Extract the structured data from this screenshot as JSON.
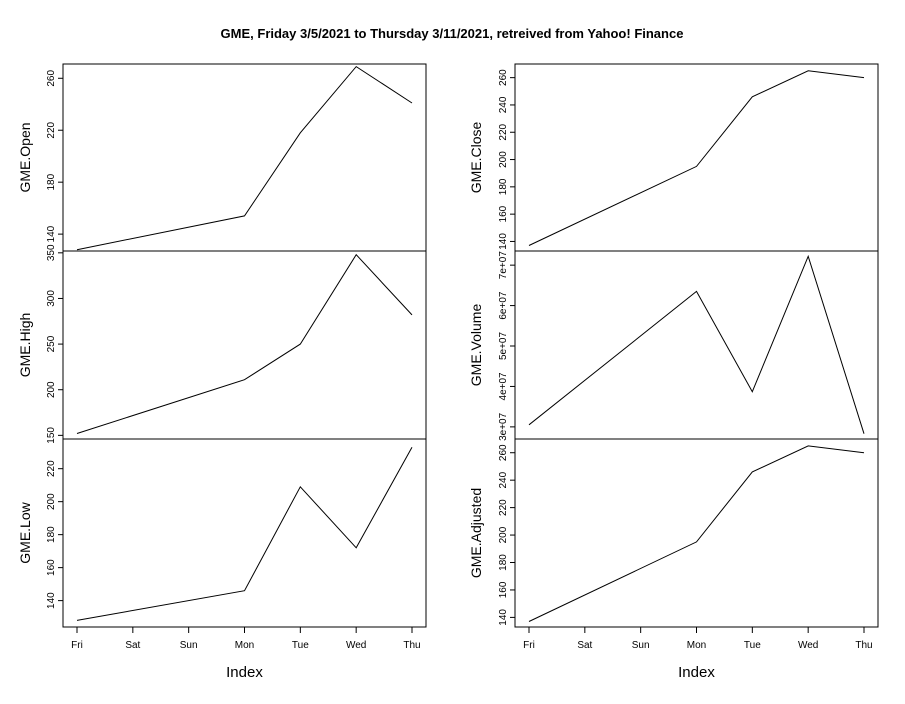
{
  "title": "GME, Friday 3/5/2021 to Thursday 3/11/2021, retreived from Yahoo! Finance",
  "chart_data": {
    "type": "line",
    "title": "GME, Friday 3/5/2021 to Thursday 3/11/2021, retreived from Yahoo! Finance",
    "x": [
      "Fri",
      "Sat",
      "Sun",
      "Mon",
      "Tue",
      "Wed",
      "Thu"
    ],
    "xlabel": "Index",
    "grid": false,
    "legend": "none",
    "columns": [
      {
        "panels": [
          {
            "ylabel": "GME.Open",
            "ylim": [
              127,
              271
            ],
            "yticks": [
              140,
              180,
              220,
              260
            ],
            "yticklabels": [
              "140",
              "180",
              "220",
              "260"
            ],
            "points": [
              [
                1,
                128
              ],
              [
                4,
                154
              ],
              [
                5,
                218
              ],
              [
                6,
                269
              ],
              [
                7,
                241
              ]
            ]
          },
          {
            "ylabel": "GME.High",
            "ylim": [
              146,
              352
            ],
            "yticks": [
              150,
              200,
              250,
              300,
              350
            ],
            "yticklabels": [
              "150",
              "200",
              "250",
              "300",
              "350"
            ],
            "points": [
              [
                1,
                152
              ],
              [
                4,
                211
              ],
              [
                5,
                250
              ],
              [
                6,
                348
              ],
              [
                7,
                282
              ]
            ]
          },
          {
            "ylabel": "GME.Low",
            "ylim": [
              124,
              238
            ],
            "yticks": [
              140,
              160,
              180,
              200,
              220
            ],
            "yticklabels": [
              "140",
              "160",
              "180",
              "200",
              "220"
            ],
            "points": [
              [
                1,
                128
              ],
              [
                4,
                146
              ],
              [
                5,
                209
              ],
              [
                6,
                172
              ],
              [
                7,
                233
              ]
            ]
          }
        ]
      },
      {
        "panels": [
          {
            "ylabel": "GME.Close",
            "ylim": [
              133,
              270
            ],
            "yticks": [
              140,
              160,
              180,
              200,
              220,
              240,
              260
            ],
            "yticklabels": [
              "140",
              "160",
              "180",
              "200",
              "220",
              "240",
              "260"
            ],
            "points": [
              [
                1,
                137
              ],
              [
                4,
                195
              ],
              [
                5,
                246
              ],
              [
                6,
                265
              ],
              [
                7,
                260
              ]
            ]
          },
          {
            "ylabel": "GME.Volume",
            "ylim": [
              27000000,
              73500000
            ],
            "yticks": [
              30000000,
              40000000,
              50000000,
              60000000,
              70000000
            ],
            "yticklabels": [
              "3e+07",
              "4e+07",
              "5e+07",
              "6e+07",
              "7e+07"
            ],
            "points": [
              [
                1,
                30500000
              ],
              [
                4,
                63500000
              ],
              [
                5,
                38700000
              ],
              [
                6,
                72200000
              ],
              [
                7,
                28300000
              ]
            ]
          },
          {
            "ylabel": "GME.Adjusted",
            "ylim": [
              133,
              270
            ],
            "yticks": [
              140,
              160,
              180,
              200,
              220,
              240,
              260
            ],
            "yticklabels": [
              "140",
              "160",
              "180",
              "200",
              "220",
              "240",
              "260"
            ],
            "points": [
              [
                1,
                137
              ],
              [
                4,
                195
              ],
              [
                5,
                246
              ],
              [
                6,
                265
              ],
              [
                7,
                260
              ]
            ]
          }
        ]
      }
    ]
  }
}
